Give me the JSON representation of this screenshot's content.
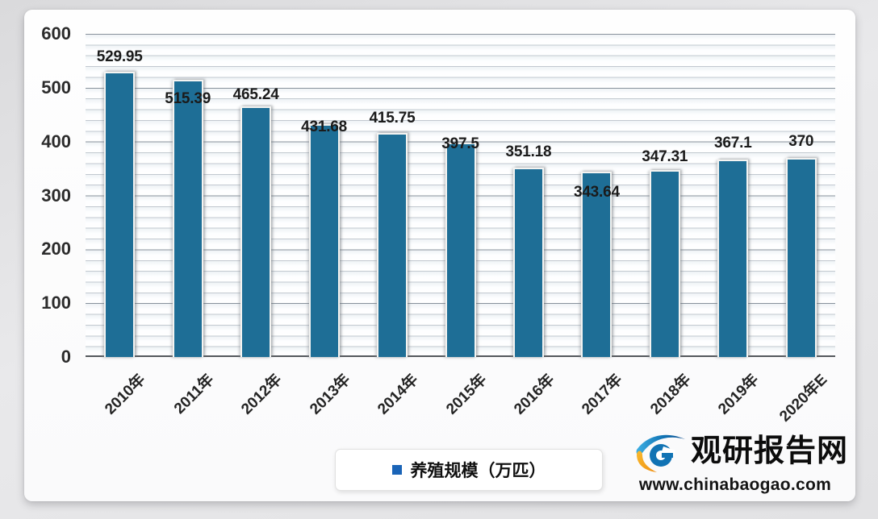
{
  "chart_data": {
    "type": "bar",
    "title": "",
    "categories": [
      "2010年",
      "2011年",
      "2012年",
      "2013年",
      "2014年",
      "2015年",
      "2016年",
      "2017年",
      "2018年",
      "2019年",
      "2020年E"
    ],
    "series": [
      {
        "name": "养殖规模（万匹）",
        "color": "#1e6e96",
        "values": [
          529.95,
          515.39,
          465.24,
          431.68,
          415.75,
          397.5,
          351.18,
          343.64,
          347.31,
          367.1,
          370
        ]
      }
    ],
    "data_labels": [
      "529.95",
      "515.39",
      "465.24",
      "431.68",
      "415.75",
      "397.5",
      "351.18",
      "343.64",
      "347.31",
      "367.1",
      "370"
    ],
    "xlabel": "",
    "ylabel": "",
    "ylim": [
      0,
      600
    ],
    "y_ticks": [
      600,
      500,
      400,
      300,
      200,
      100,
      0
    ],
    "grid": {
      "show": true,
      "minor_step": 20,
      "major_step": 100
    },
    "legend": {
      "label": "养殖规模（万匹）",
      "marker_color": "#1a64b7",
      "position": "bottom"
    }
  },
  "branding": {
    "site_name": "观研报告网",
    "site_url": "www.chinabaogao.com",
    "logo_icon": "eye-swirl-icon",
    "colors": {
      "logo_blue": "#1173b4",
      "logo_navy": "#0a4a8c",
      "logo_cyan": "#3fb0e4",
      "logo_orange": "#f5a01c"
    }
  },
  "colors": {
    "bar": "#1e6e96",
    "page_background": "#e4e4e6",
    "card_background": "#fdfdfd",
    "grid_minor": "#c2c9d0",
    "grid_major": "#7d8792",
    "axis": "#54585d",
    "data_label_text": "#1b1b1b"
  }
}
